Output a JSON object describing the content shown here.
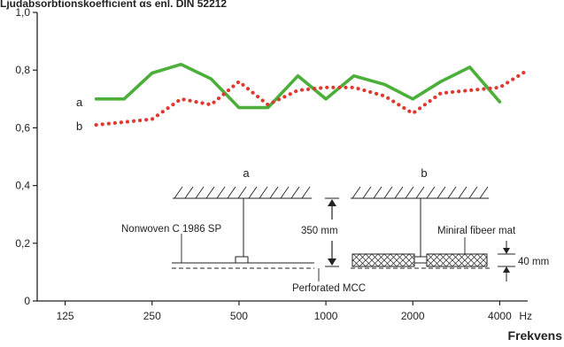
{
  "chart_data": {
    "type": "line",
    "title": "Ljudabsorbtionskoefficient αs enl. DIN 52212",
    "xlabel": "Frekvens",
    "x_unit": "Hz",
    "x_scale": "log",
    "x_ticks": [
      "125",
      "250",
      "500",
      "1000",
      "2000",
      "4000"
    ],
    "xlim": [
      100,
      5000
    ],
    "ylim": [
      0,
      1.0
    ],
    "y_ticks": [
      "0",
      "0,2",
      "0,4",
      "0,6",
      "0,8",
      "1,0"
    ],
    "grid": false,
    "series": [
      {
        "name": "a",
        "color": "#4caf3a",
        "style": "solid",
        "x": [
          160,
          200,
          250,
          315,
          400,
          500,
          630,
          800,
          1000,
          1250,
          1600,
          2000,
          2500,
          3150,
          4000
        ],
        "values": [
          0.7,
          0.7,
          0.79,
          0.82,
          0.77,
          0.67,
          0.67,
          0.78,
          0.7,
          0.78,
          0.75,
          0.7,
          0.76,
          0.81,
          0.69
        ]
      },
      {
        "name": "b",
        "color": "#e03a2f",
        "style": "dotted",
        "x": [
          160,
          200,
          250,
          315,
          400,
          500,
          630,
          800,
          1000,
          1250,
          1600,
          2000,
          2500,
          3150,
          4000,
          5000
        ],
        "values": [
          0.61,
          0.62,
          0.63,
          0.7,
          0.68,
          0.76,
          0.68,
          0.73,
          0.74,
          0.74,
          0.71,
          0.65,
          0.72,
          0.73,
          0.74,
          0.8
        ]
      }
    ],
    "inset": {
      "panel_a": "a",
      "panel_b": "b",
      "label_left": "Nonwoven C 1986 SP",
      "label_depth": "350 mm",
      "label_bottom": "Perforated MCC",
      "label_mat": "Miniral fibeer mat",
      "label_thickness": "40 mm"
    }
  }
}
